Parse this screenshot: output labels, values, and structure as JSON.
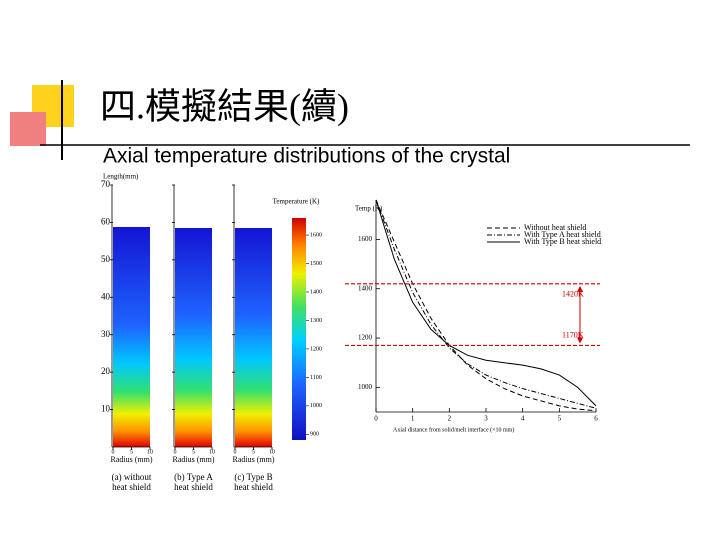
{
  "slide": {
    "title": "四.模擬結果(續)",
    "subtitle": "Axial temperature distributions of the crystal"
  },
  "chart_data": [
    {
      "type": "heatmap",
      "y_label": "Length(mm)",
      "ylim": [
        0,
        70
      ],
      "yticks": [
        10,
        20,
        30,
        40,
        50,
        60,
        70
      ],
      "colorbar_label": "Temperature (K)",
      "clim": [
        880,
        1660
      ],
      "colorbar_ticks": [
        900,
        1000,
        1100,
        1200,
        1300,
        1400,
        1500,
        1600
      ],
      "panels": [
        {
          "x_label": "Radius (mm)",
          "caption": [
            "(a) without",
            "heat shield"
          ],
          "xlim": [
            0,
            10
          ],
          "xticks": [
            0,
            5,
            10
          ]
        },
        {
          "x_label": "Radius (mm)",
          "caption": [
            "(b) Type A",
            "heat shield"
          ],
          "xlim": [
            0,
            10
          ],
          "xticks": [
            0,
            5,
            10
          ]
        },
        {
          "x_label": "Radius (mm)",
          "caption": [
            "(c) Type B",
            "heat shield"
          ],
          "xlim": [
            0,
            10
          ],
          "xticks": [
            0,
            5,
            10
          ]
        }
      ]
    },
    {
      "type": "line",
      "y_label": "Temp (K)",
      "x_label": "Axial distance from solid/melt interface (×10 mm)",
      "xlim": [
        0,
        6
      ],
      "xticks": [
        0,
        1,
        2,
        3,
        4,
        5,
        6
      ],
      "ylim": [
        900,
        1760
      ],
      "yticks": [
        1000,
        1200,
        1400,
        1600
      ],
      "x": [
        0,
        0.5,
        1,
        1.5,
        2,
        2.5,
        3,
        3.5,
        4,
        4.5,
        5,
        5.5,
        6
      ],
      "series": [
        {
          "name": "Without heat shield",
          "color": "#000000",
          "dash": "dashed",
          "values": [
            1760,
            1590,
            1420,
            1280,
            1170,
            1090,
            1035,
            995,
            965,
            945,
            925,
            912,
            905
          ]
        },
        {
          "name": "With Type A heat shield",
          "color": "#000000",
          "dash": "dashdot",
          "values": [
            1760,
            1560,
            1385,
            1255,
            1160,
            1095,
            1050,
            1020,
            995,
            975,
            955,
            935,
            915
          ]
        },
        {
          "name": "With Type B heat shield",
          "color": "#000000",
          "dash": "solid",
          "values": [
            1760,
            1520,
            1345,
            1235,
            1170,
            1130,
            1110,
            1100,
            1090,
            1075,
            1050,
            1000,
            925
          ]
        }
      ],
      "annotations": [
        {
          "value": 1420,
          "label": "1420K",
          "color": "#cc0000"
        },
        {
          "value": 1170,
          "label": "1170K",
          "color": "#cc0000"
        }
      ]
    }
  ]
}
